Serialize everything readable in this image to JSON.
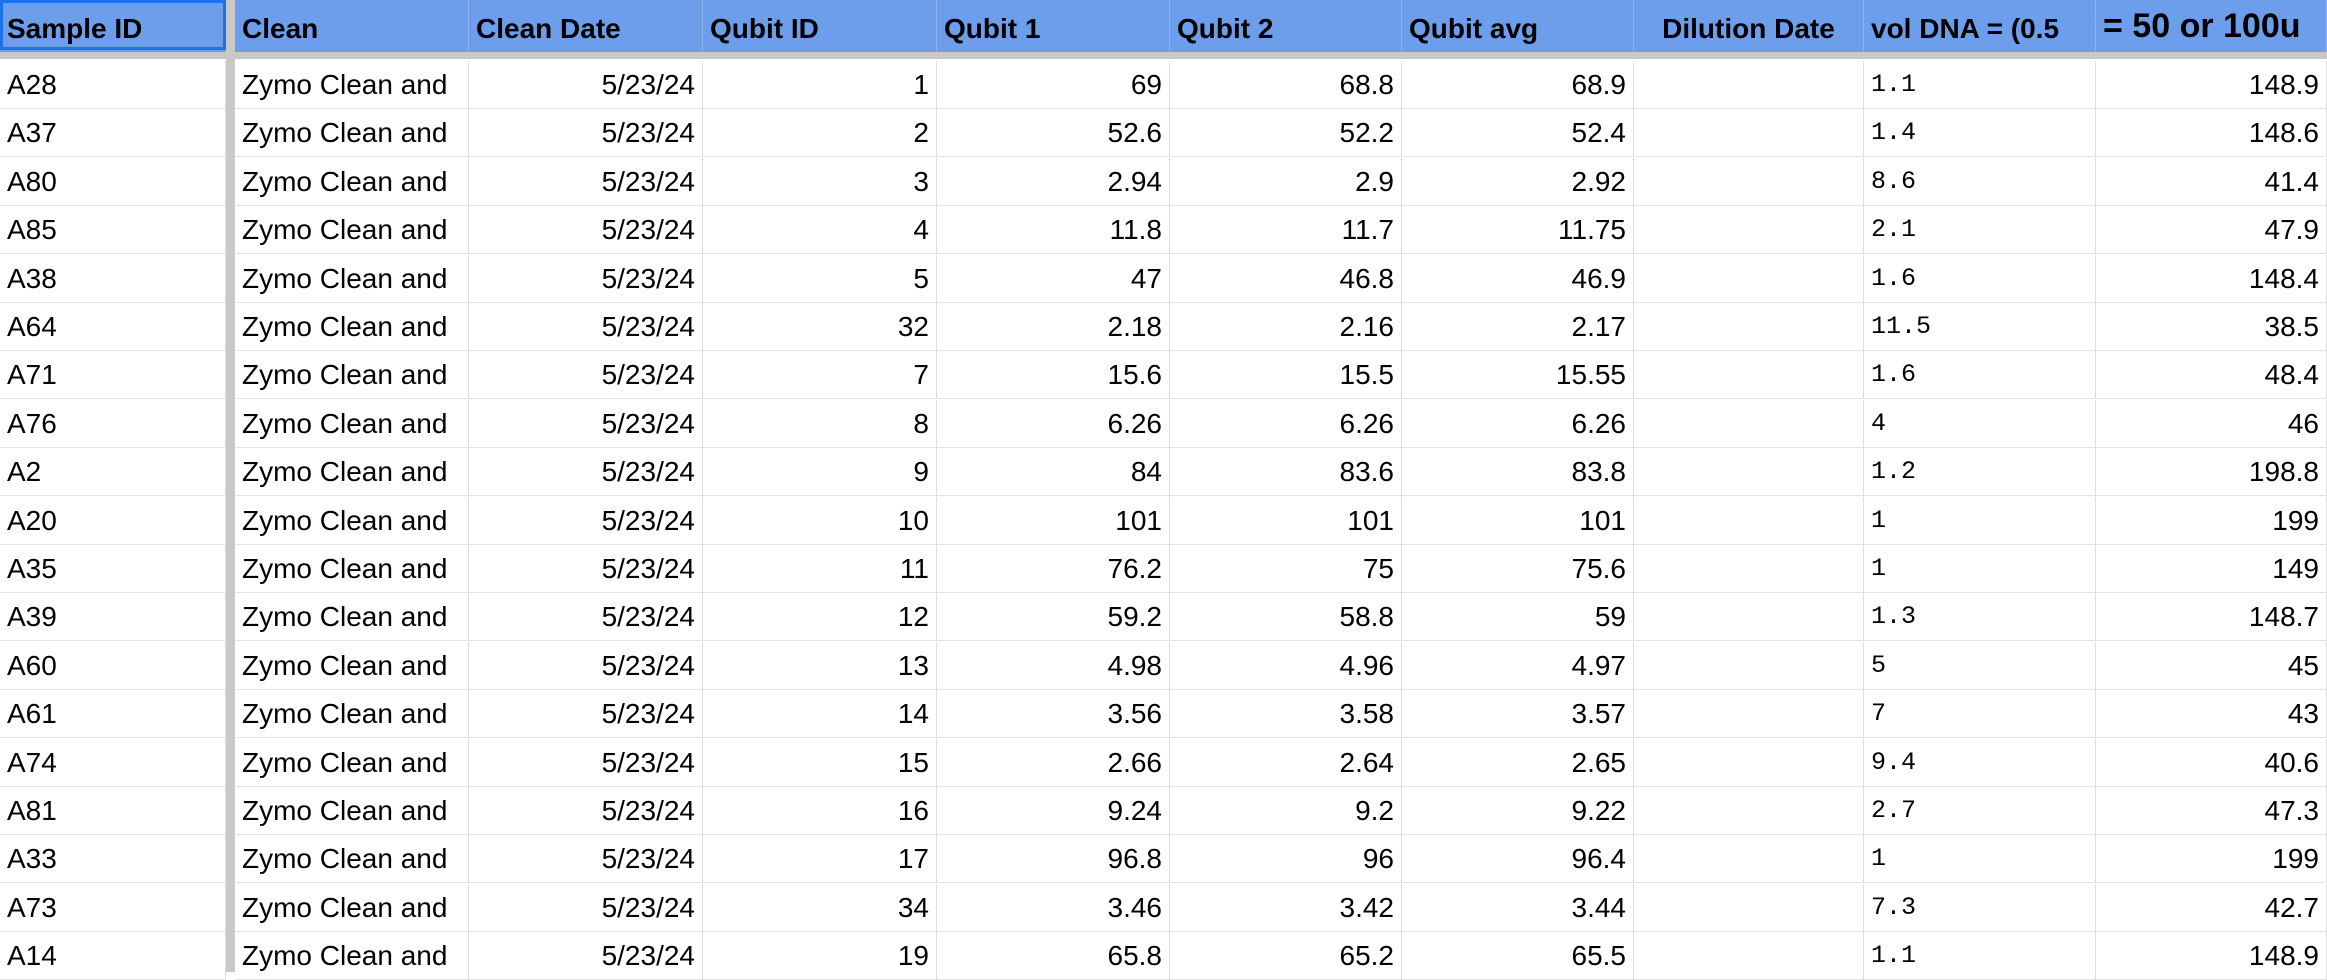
{
  "columns": [
    {
      "label": "Sample ID"
    },
    {
      "label": "Clean"
    },
    {
      "label": "Clean Date"
    },
    {
      "label": "Qubit ID"
    },
    {
      "label": "Qubit 1"
    },
    {
      "label": "Qubit 2"
    },
    {
      "label": "Qubit avg"
    },
    {
      "label": "Dilution Date"
    },
    {
      "label": "vol DNA = (0.5"
    },
    {
      "label": "= 50 or 100u"
    }
  ],
  "rows": [
    [
      "A28",
      "Zymo Clean and",
      "5/23/24",
      "1",
      "69",
      "68.8",
      "68.9",
      "",
      "1.1",
      "148.9"
    ],
    [
      "A37",
      "Zymo Clean and",
      "5/23/24",
      "2",
      "52.6",
      "52.2",
      "52.4",
      "",
      "1.4",
      "148.6"
    ],
    [
      "A80",
      "Zymo Clean and",
      "5/23/24",
      "3",
      "2.94",
      "2.9",
      "2.92",
      "",
      "8.6",
      "41.4"
    ],
    [
      "A85",
      "Zymo Clean and",
      "5/23/24",
      "4",
      "11.8",
      "11.7",
      "11.75",
      "",
      "2.1",
      "47.9"
    ],
    [
      "A38",
      "Zymo Clean and",
      "5/23/24",
      "5",
      "47",
      "46.8",
      "46.9",
      "",
      "1.6",
      "148.4"
    ],
    [
      "A64",
      "Zymo Clean and",
      "5/23/24",
      "32",
      "2.18",
      "2.16",
      "2.17",
      "",
      "11.5",
      "38.5"
    ],
    [
      "A71",
      "Zymo Clean and",
      "5/23/24",
      "7",
      "15.6",
      "15.5",
      "15.55",
      "",
      "1.6",
      "48.4"
    ],
    [
      "A76",
      "Zymo Clean and",
      "5/23/24",
      "8",
      "6.26",
      "6.26",
      "6.26",
      "",
      "4",
      "46"
    ],
    [
      "A2",
      "Zymo Clean and",
      "5/23/24",
      "9",
      "84",
      "83.6",
      "83.8",
      "",
      "1.2",
      "198.8"
    ],
    [
      "A20",
      "Zymo Clean and",
      "5/23/24",
      "10",
      "101",
      "101",
      "101",
      "",
      "1",
      "199"
    ],
    [
      "A35",
      "Zymo Clean and",
      "5/23/24",
      "11",
      "76.2",
      "75",
      "75.6",
      "",
      "1",
      "149"
    ],
    [
      "A39",
      "Zymo Clean and",
      "5/23/24",
      "12",
      "59.2",
      "58.8",
      "59",
      "",
      "1.3",
      "148.7"
    ],
    [
      "A60",
      "Zymo Clean and",
      "5/23/24",
      "13",
      "4.98",
      "4.96",
      "4.97",
      "",
      "5",
      "45"
    ],
    [
      "A61",
      "Zymo Clean and",
      "5/23/24",
      "14",
      "3.56",
      "3.58",
      "3.57",
      "",
      "7",
      "43"
    ],
    [
      "A74",
      "Zymo Clean and",
      "5/23/24",
      "15",
      "2.66",
      "2.64",
      "2.65",
      "",
      "9.4",
      "40.6"
    ],
    [
      "A81",
      "Zymo Clean and",
      "5/23/24",
      "16",
      "9.24",
      "9.2",
      "9.22",
      "",
      "2.7",
      "47.3"
    ],
    [
      "A33",
      "Zymo Clean and",
      "5/23/24",
      "17",
      "96.8",
      "96",
      "96.4",
      "",
      "1",
      "199"
    ],
    [
      "A73",
      "Zymo Clean and",
      "5/23/24",
      "34",
      "3.46",
      "3.42",
      "3.44",
      "",
      "7.3",
      "42.7"
    ],
    [
      "A14",
      "Zymo Clean and",
      "5/23/24",
      "19",
      "65.8",
      "65.2",
      "65.5",
      "",
      "1.1",
      "148.9"
    ]
  ],
  "colors": {
    "header_bg": "#6d9eeb",
    "selection": "#1a73e8",
    "gridline": "#dadce0",
    "freeze_bar": "#c9c9c9"
  }
}
